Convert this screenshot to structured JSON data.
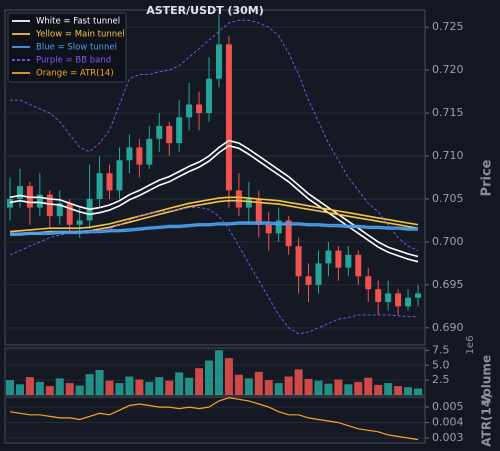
{
  "chart_data": {
    "type": "candlestick",
    "title": "ASTER/USDT (30M)",
    "y_label": "Price",
    "ylim": [
      0.688,
      0.727
    ],
    "yticks": [
      {
        "value": 0.69,
        "label": "0.690"
      },
      0.695,
      {
        "value": 0.7,
        "label": "0.700"
      },
      0.705,
      {
        "value": 0.71,
        "label": "0.710"
      },
      0.715,
      {
        "value": 0.72,
        "label": "0.720"
      },
      0.725
    ],
    "grid": true,
    "up_color": "#26a69a",
    "down_color": "#ef5350",
    "open": [
      0.704,
      0.705,
      0.7065,
      0.704,
      0.7055,
      0.703,
      0.7045,
      0.702,
      0.7025,
      0.705,
      0.708,
      0.706,
      0.7095,
      0.711,
      0.709,
      0.712,
      0.7135,
      0.7115,
      0.7145,
      0.716,
      0.715,
      0.719,
      0.723,
      0.706,
      0.704,
      0.705,
      0.702,
      0.701,
      0.7025,
      0.6995,
      0.696,
      0.695,
      0.6975,
      0.699,
      0.697,
      0.6985,
      0.696,
      0.6945,
      0.693,
      0.694,
      0.6925,
      0.6935
    ],
    "high": [
      0.7075,
      0.7085,
      0.707,
      0.708,
      0.706,
      0.706,
      0.705,
      0.704,
      0.709,
      0.71,
      0.709,
      0.711,
      0.7125,
      0.712,
      0.7135,
      0.715,
      0.714,
      0.7165,
      0.7185,
      0.7175,
      0.7215,
      0.7265,
      0.724,
      0.708,
      0.707,
      0.706,
      0.7035,
      0.704,
      0.703,
      0.7005,
      0.6975,
      0.699,
      0.7,
      0.6995,
      0.6995,
      0.699,
      0.697,
      0.6955,
      0.6955,
      0.6945,
      0.6945,
      0.695
    ],
    "low": [
      0.7025,
      0.704,
      0.702,
      0.703,
      0.7015,
      0.702,
      0.701,
      0.7005,
      0.7015,
      0.704,
      0.705,
      0.705,
      0.708,
      0.7075,
      0.7085,
      0.7105,
      0.71,
      0.7105,
      0.713,
      0.713,
      0.714,
      0.718,
      0.704,
      0.703,
      0.702,
      0.7005,
      0.699,
      0.7,
      0.6985,
      0.694,
      0.693,
      0.694,
      0.696,
      0.6955,
      0.696,
      0.695,
      0.693,
      0.6915,
      0.692,
      0.6915,
      0.692,
      0.6925
    ],
    "close": [
      0.705,
      0.7065,
      0.704,
      0.7055,
      0.703,
      0.7045,
      0.702,
      0.7025,
      0.705,
      0.708,
      0.706,
      0.7095,
      0.711,
      0.709,
      0.712,
      0.7135,
      0.7115,
      0.7145,
      0.716,
      0.715,
      0.719,
      0.723,
      0.706,
      0.704,
      0.705,
      0.702,
      0.701,
      0.7025,
      0.6995,
      0.696,
      0.695,
      0.6975,
      0.699,
      0.697,
      0.6985,
      0.696,
      0.6945,
      0.693,
      0.694,
      0.6925,
      0.6935,
      0.694
    ],
    "series": [
      {
        "name": "White = Fast tunnel",
        "color": "#ffffff",
        "values": [
          0.7052,
          0.7054,
          0.7052,
          0.7052,
          0.705,
          0.7049,
          0.7045,
          0.7041,
          0.7038,
          0.704,
          0.7043,
          0.7048,
          0.7055,
          0.706,
          0.7066,
          0.7072,
          0.7076,
          0.7082,
          0.7088,
          0.7093,
          0.71,
          0.711,
          0.7118,
          0.7115,
          0.7108,
          0.71,
          0.7092,
          0.7084,
          0.7076,
          0.7066,
          0.7056,
          0.7048,
          0.704,
          0.7032,
          0.7024,
          0.7016,
          0.7008,
          0.7,
          0.6994,
          0.699,
          0.6986,
          0.6983
        ],
        "values2": [
          0.7046,
          0.7048,
          0.7046,
          0.7046,
          0.7044,
          0.7043,
          0.7039,
          0.7035,
          0.7032,
          0.7034,
          0.7037,
          0.7042,
          0.7049,
          0.7054,
          0.706,
          0.7066,
          0.707,
          0.7076,
          0.7082,
          0.7087,
          0.7094,
          0.7104,
          0.7112,
          0.7109,
          0.7102,
          0.7094,
          0.7086,
          0.7078,
          0.707,
          0.706,
          0.705,
          0.7042,
          0.7034,
          0.7026,
          0.7018,
          0.701,
          0.7002,
          0.6994,
          0.6988,
          0.6984,
          0.698,
          0.6977
        ]
      },
      {
        "name": "Yellow = Main tunnel",
        "color": "#f5c542",
        "values": [
          0.7012,
          0.7013,
          0.7014,
          0.7015,
          0.7016,
          0.7016,
          0.7016,
          0.7016,
          0.7017,
          0.7019,
          0.7021,
          0.7024,
          0.7027,
          0.703,
          0.7033,
          0.7036,
          0.7039,
          0.7042,
          0.7045,
          0.7047,
          0.7049,
          0.7051,
          0.7052,
          0.7052,
          0.7051,
          0.705,
          0.7049,
          0.7048,
          0.7046,
          0.7044,
          0.7042,
          0.704,
          0.7038,
          0.7036,
          0.7034,
          0.7032,
          0.703,
          0.7028,
          0.7026,
          0.7024,
          0.7022,
          0.702
        ],
        "values2": [
          0.7008,
          0.7009,
          0.701,
          0.7011,
          0.7012,
          0.7012,
          0.7012,
          0.7012,
          0.7013,
          0.7015,
          0.7017,
          0.702,
          0.7023,
          0.7026,
          0.7029,
          0.7032,
          0.7035,
          0.7038,
          0.7041,
          0.7043,
          0.7045,
          0.7047,
          0.7048,
          0.7048,
          0.7047,
          0.7046,
          0.7045,
          0.7044,
          0.7042,
          0.704,
          0.7038,
          0.7036,
          0.7034,
          0.7032,
          0.703,
          0.7028,
          0.7026,
          0.7024,
          0.7022,
          0.702,
          0.7018,
          0.7016
        ]
      },
      {
        "name": "Blue = Slow tunnel",
        "color": "#4a9fe8",
        "values": [
          0.701,
          0.701,
          0.7011,
          0.7011,
          0.7011,
          0.7012,
          0.7012,
          0.7012,
          0.7013,
          0.7013,
          0.7014,
          0.7014,
          0.7015,
          0.7016,
          0.7017,
          0.7018,
          0.7019,
          0.7019,
          0.702,
          0.7021,
          0.7021,
          0.7022,
          0.7022,
          0.7023,
          0.7023,
          0.7023,
          0.7023,
          0.7022,
          0.7022,
          0.7022,
          0.7021,
          0.7021,
          0.702,
          0.702,
          0.7019,
          0.7019,
          0.7018,
          0.7018,
          0.7017,
          0.7017,
          0.7016,
          0.7016
        ],
        "values2": [
          0.7008,
          0.7008,
          0.7009,
          0.7009,
          0.7009,
          0.701,
          0.701,
          0.701,
          0.7011,
          0.7011,
          0.7012,
          0.7012,
          0.7013,
          0.7014,
          0.7015,
          0.7016,
          0.7017,
          0.7017,
          0.7018,
          0.7019,
          0.7019,
          0.702,
          0.702,
          0.7021,
          0.7021,
          0.7021,
          0.7021,
          0.702,
          0.702,
          0.702,
          0.7019,
          0.7019,
          0.7018,
          0.7018,
          0.7017,
          0.7017,
          0.7016,
          0.7016,
          0.7015,
          0.7015,
          0.7014,
          0.7014
        ]
      },
      {
        "name": "Purple = BB band",
        "color": "#7b5cf0",
        "dashed": true,
        "values": [
          0.7165,
          0.7165,
          0.716,
          0.7155,
          0.715,
          0.714,
          0.7125,
          0.711,
          0.7105,
          0.7115,
          0.713,
          0.716,
          0.719,
          0.7195,
          0.7195,
          0.7198,
          0.72,
          0.7205,
          0.7215,
          0.7225,
          0.7235,
          0.7245,
          0.7255,
          0.7258,
          0.7258,
          0.7255,
          0.725,
          0.724,
          0.722,
          0.7195,
          0.7165,
          0.714,
          0.7115,
          0.7095,
          0.7075,
          0.706,
          0.7045,
          0.7035,
          0.702,
          0.7005,
          0.6995,
          0.699
        ],
        "values2": [
          0.6985,
          0.699,
          0.6995,
          0.7,
          0.7005,
          0.7008,
          0.701,
          0.701,
          0.701,
          0.7012,
          0.7015,
          0.702,
          0.7025,
          0.703,
          0.7033,
          0.7035,
          0.7036,
          0.7038,
          0.704,
          0.704,
          0.7038,
          0.703,
          0.7015,
          0.6995,
          0.6975,
          0.6955,
          0.6935,
          0.6915,
          0.69,
          0.6893,
          0.6895,
          0.69,
          0.6905,
          0.691,
          0.6912,
          0.6915,
          0.6915,
          0.6915,
          0.6915,
          0.6914,
          0.6913,
          0.6913
        ]
      }
    ],
    "volume": {
      "type": "bar",
      "y_label": "Volume",
      "offset_label": "1e6",
      "ylim": [
        0,
        7.9
      ],
      "yticks": [
        2.5,
        {
          "value": 5,
          "label": "5.0"
        },
        7.5
      ],
      "values": [
        2.5,
        1.8,
        3.0,
        2.2,
        1.5,
        2.8,
        2.0,
        1.6,
        3.5,
        4.2,
        2.4,
        2.0,
        3.1,
        2.6,
        2.2,
        3.0,
        2.4,
        3.8,
        2.9,
        4.5,
        5.8,
        7.5,
        6.2,
        3.4,
        2.8,
        3.9,
        2.5,
        2.0,
        3.1,
        4.3,
        2.7,
        2.4,
        1.9,
        2.6,
        1.8,
        2.2,
        2.9,
        1.7,
        2.0,
        1.5,
        1.3,
        1.1
      ]
    },
    "atr": {
      "type": "line",
      "name": "Orange = ATR(14)",
      "y_label": "ATR(14)",
      "color": "#f5a623",
      "ylim": [
        0.00268,
        0.00565
      ],
      "yticks": [
        0.005,
        0.004,
        0.003
      ],
      "values": [
        0.0047,
        0.0046,
        0.0045,
        0.0045,
        0.0044,
        0.0043,
        0.0043,
        0.0042,
        0.0044,
        0.0046,
        0.0045,
        0.0048,
        0.0051,
        0.0052,
        0.0051,
        0.005,
        0.005,
        0.0049,
        0.005,
        0.0049,
        0.005,
        0.0054,
        0.0056,
        0.0055,
        0.0054,
        0.0052,
        0.005,
        0.0047,
        0.0045,
        0.0045,
        0.0043,
        0.0042,
        0.0041,
        0.004,
        0.0038,
        0.0036,
        0.0035,
        0.0034,
        0.0032,
        0.0031,
        0.003,
        0.0029
      ]
    }
  }
}
